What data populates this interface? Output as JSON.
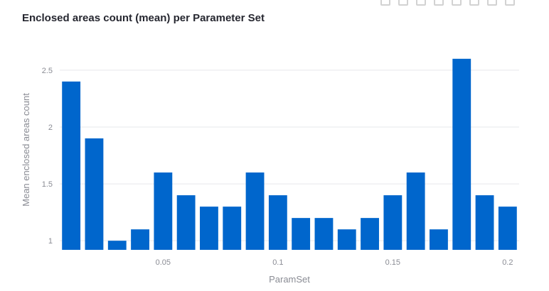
{
  "chart_data": {
    "type": "bar",
    "title": "Enclosed areas count (mean) per Parameter Set",
    "xlabel": "ParamSet",
    "ylabel": "Mean enclosed areas count",
    "x": [
      0.01,
      0.02,
      0.03,
      0.04,
      0.05,
      0.06,
      0.07,
      0.08,
      0.09,
      0.1,
      0.11,
      0.12,
      0.13,
      0.14,
      0.15,
      0.16,
      0.17,
      0.18,
      0.19,
      0.2
    ],
    "values": [
      2.4,
      1.9,
      1.0,
      1.1,
      1.6,
      1.4,
      1.3,
      1.3,
      1.6,
      1.4,
      1.2,
      1.2,
      1.1,
      1.2,
      1.4,
      1.6,
      1.1,
      2.6,
      1.4,
      1.3
    ],
    "xlim": [
      0.005,
      0.205
    ],
    "ylim": [
      0.92,
      2.68
    ],
    "xticks": [
      0.05,
      0.1,
      0.15,
      0.2
    ],
    "xtick_labels": [
      "0.05",
      "0.1",
      "0.15",
      "0.2"
    ],
    "yticks": [
      1,
      1.5,
      2,
      2.5
    ],
    "ytick_labels": [
      "1",
      "1.5",
      "2",
      "2.5"
    ],
    "bar_color": "#0066cc",
    "grid_color": "#e6e8eb",
    "grid": true
  },
  "modebar": {
    "icons": [
      "camera-icon",
      "zoom-icon",
      "pan-icon",
      "box-select-icon",
      "lasso-icon",
      "autoscale-icon",
      "home-icon",
      "fullscreen-icon"
    ]
  }
}
